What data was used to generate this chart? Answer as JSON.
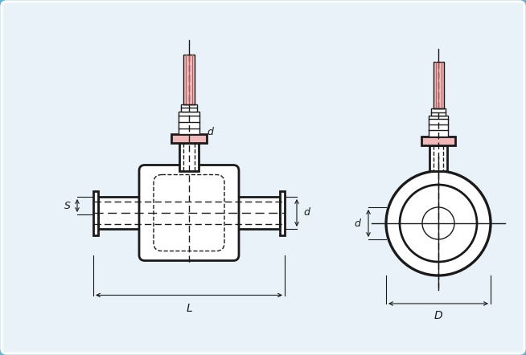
{
  "bg_outer": "#5ab4e0",
  "bg_inner": "#e8f2f8",
  "line_color": "#1a1a1a",
  "pink_fill": "#f0b8b8",
  "pink_dark": "#b06060",
  "lw_thick": 2.0,
  "lw_thin": 1.0,
  "lw_dim": 0.8,
  "labels": {
    "d": "d",
    "s": "S",
    "l": "L",
    "D": "D"
  }
}
